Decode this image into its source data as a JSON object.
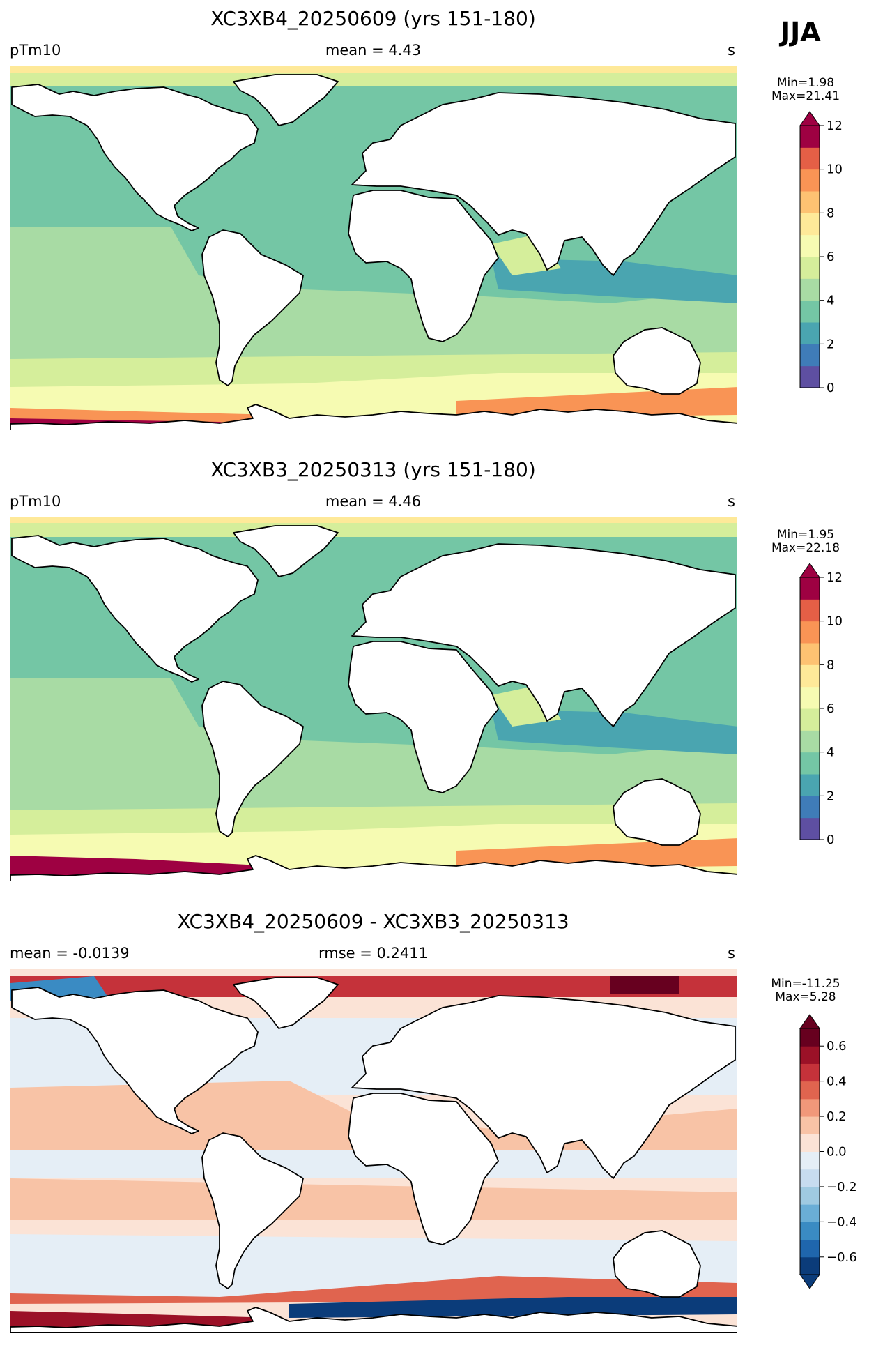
{
  "season": "JJA",
  "units_label": "s",
  "panels": [
    {
      "title": "XC3XB4_20250609 (yrs 151-180)",
      "left": "pTm10",
      "center": "mean = 4.43",
      "right": "s",
      "stats_min": "Min=1.98",
      "stats_max": "Max=21.41",
      "colorbar": {
        "ticks": [
          "0",
          "2",
          "4",
          "6",
          "8",
          "10",
          "12"
        ],
        "levels": [
          0,
          1,
          2,
          3,
          4,
          5,
          6,
          7,
          8,
          9,
          10,
          11,
          12
        ],
        "colors": [
          "#5e4fa2",
          "#3f7cb8",
          "#4aa5b0",
          "#74c6a5",
          "#a8dba4",
          "#d5ee9b",
          "#f6fbb2",
          "#fee999",
          "#fdc272",
          "#f99455",
          "#e45f46",
          "#9e0142"
        ],
        "extend": "max"
      },
      "map_field": "model_a"
    },
    {
      "title": "XC3XB3_20250313 (yrs 151-180)",
      "left": "pTm10",
      "center": "mean = 4.46",
      "right": "s",
      "stats_min": "Min=1.95",
      "stats_max": "Max=22.18",
      "colorbar": {
        "ticks": [
          "0",
          "2",
          "4",
          "6",
          "8",
          "10",
          "12"
        ],
        "levels": [
          0,
          1,
          2,
          3,
          4,
          5,
          6,
          7,
          8,
          9,
          10,
          11,
          12
        ],
        "colors": [
          "#5e4fa2",
          "#3f7cb8",
          "#4aa5b0",
          "#74c6a5",
          "#a8dba4",
          "#d5ee9b",
          "#f6fbb2",
          "#fee999",
          "#fdc272",
          "#f99455",
          "#e45f46",
          "#9e0142"
        ],
        "extend": "max"
      },
      "map_field": "model_b"
    },
    {
      "title": "XC3XB4_20250609 - XC3XB3_20250313",
      "left": "mean = -0.0139",
      "center": "rmse = 0.2411",
      "right": "s",
      "stats_min": "Min=-11.25",
      "stats_max": "Max=5.28",
      "colorbar": {
        "ticks": [
          "−0.6",
          "−0.4",
          "−0.2",
          "0.0",
          "0.2",
          "0.4",
          "0.6"
        ],
        "levels": [
          -0.7,
          -0.6,
          -0.5,
          -0.4,
          -0.3,
          -0.2,
          -0.1,
          0.0,
          0.1,
          0.2,
          0.3,
          0.4,
          0.5,
          0.6,
          0.7
        ],
        "colors": [
          "#0b3c7a",
          "#1f66ad",
          "#3a8bc3",
          "#6aaed6",
          "#9fcae1",
          "#c7dcef",
          "#e5eef6",
          "#fbe3d6",
          "#f8c3a6",
          "#f1987a",
          "#e0644f",
          "#c5323a",
          "#9b1127",
          "#67001f"
        ],
        "extend": "both"
      },
      "map_field": "difference"
    }
  ]
}
